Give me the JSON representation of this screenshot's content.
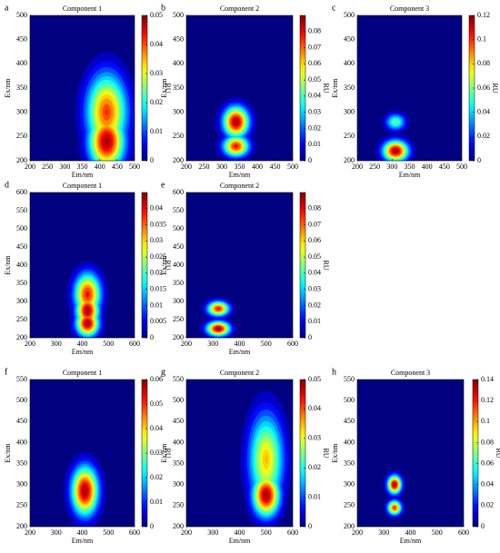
{
  "chart_data": [
    {
      "type": "contour",
      "panel": "a",
      "title": "Component 1",
      "xlabel": "Em/nm",
      "ylabel": "Ex/nm",
      "colorbar_label": "RU",
      "xlim": [
        200,
        500
      ],
      "xticks": [
        200,
        250,
        300,
        350,
        400,
        450,
        500
      ],
      "ylim": [
        200,
        500
      ],
      "yticks": [
        200,
        250,
        300,
        350,
        400,
        450,
        500
      ],
      "clim": [
        0,
        0.05
      ],
      "cticks": [
        0,
        0.01,
        0.02,
        0.03,
        0.04,
        0.05
      ],
      "colormap": "jet",
      "peaks": [
        {
          "em": 420,
          "ex": 300,
          "value": 0.042,
          "em_spread": 40,
          "ex_spread": 55
        },
        {
          "em": 420,
          "ex": 240,
          "value": 0.05,
          "em_spread": 35,
          "ex_spread": 40
        }
      ]
    },
    {
      "type": "contour",
      "panel": "b",
      "title": "Component 2",
      "xlabel": "Em/nm",
      "ylabel": "Ex/nm",
      "colorbar_label": "RU",
      "xlim": [
        200,
        500
      ],
      "xticks": [
        200,
        250,
        300,
        350,
        400,
        450,
        500
      ],
      "ylim": [
        200,
        500
      ],
      "yticks": [
        200,
        250,
        300,
        350,
        400,
        450,
        500
      ],
      "clim": [
        0,
        0.09
      ],
      "cticks": [
        0,
        0.01,
        0.02,
        0.03,
        0.04,
        0.05,
        0.06,
        0.07,
        0.08
      ],
      "colormap": "jet",
      "peaks": [
        {
          "em": 340,
          "ex": 280,
          "value": 0.09,
          "em_spread": 25,
          "ex_spread": 22
        },
        {
          "em": 340,
          "ex": 230,
          "value": 0.08,
          "em_spread": 25,
          "ex_spread": 15
        }
      ]
    },
    {
      "type": "contour",
      "panel": "c",
      "title": "Component 3",
      "xlabel": "Em/nm",
      "ylabel": "Ex/nm",
      "colorbar_label": "RU",
      "xlim": [
        200,
        500
      ],
      "xticks": [
        200,
        250,
        300,
        350,
        400,
        450,
        500
      ],
      "ylim": [
        200,
        500
      ],
      "yticks": [
        200,
        250,
        300,
        350,
        400,
        450,
        500
      ],
      "clim": [
        0,
        0.12
      ],
      "cticks": [
        0,
        0.02,
        0.04,
        0.06,
        0.08,
        0.1,
        0.12
      ],
      "colormap": "jet",
      "peaks": [
        {
          "em": 310,
          "ex": 280,
          "value": 0.06,
          "em_spread": 20,
          "ex_spread": 12
        },
        {
          "em": 310,
          "ex": 220,
          "value": 0.12,
          "em_spread": 25,
          "ex_spread": 15
        }
      ]
    },
    {
      "type": "contour",
      "panel": "d",
      "title": "Component 1",
      "xlabel": "Em/nm",
      "ylabel": "Ex/nm",
      "colorbar_label": "RU",
      "xlim": [
        200,
        600
      ],
      "xticks": [
        200,
        300,
        400,
        500,
        600
      ],
      "ylim": [
        200,
        600
      ],
      "yticks": [
        200,
        250,
        300,
        350,
        400,
        450,
        500,
        550,
        600
      ],
      "clim": [
        0,
        0.045
      ],
      "cticks": [
        0,
        0.005,
        0.01,
        0.015,
        0.02,
        0.025,
        0.03,
        0.035,
        0.04
      ],
      "colormap": "jet",
      "peaks": [
        {
          "em": 420,
          "ex": 320,
          "value": 0.04,
          "em_spread": 35,
          "ex_spread": 40
        },
        {
          "em": 420,
          "ex": 275,
          "value": 0.045,
          "em_spread": 30,
          "ex_spread": 30
        },
        {
          "em": 420,
          "ex": 240,
          "value": 0.045,
          "em_spread": 30,
          "ex_spread": 25
        }
      ]
    },
    {
      "type": "contour",
      "panel": "e",
      "title": "Component 2",
      "xlabel": "Em/nm",
      "ylabel": "Ex/nm",
      "colorbar_label": "RU",
      "xlim": [
        200,
        600
      ],
      "xticks": [
        200,
        300,
        400,
        500,
        600
      ],
      "ylim": [
        200,
        600
      ],
      "yticks": [
        200,
        250,
        300,
        350,
        400,
        450,
        500,
        550,
        600
      ],
      "clim": [
        0,
        0.09
      ],
      "cticks": [
        0,
        0.01,
        0.02,
        0.03,
        0.04,
        0.05,
        0.06,
        0.07,
        0.08
      ],
      "colormap": "jet",
      "peaks": [
        {
          "em": 320,
          "ex": 280,
          "value": 0.08,
          "em_spread": 28,
          "ex_spread": 14
        },
        {
          "em": 320,
          "ex": 225,
          "value": 0.09,
          "em_spread": 30,
          "ex_spread": 14
        }
      ]
    },
    {
      "type": "contour",
      "panel": "f",
      "title": "Component 1",
      "xlabel": "Em/nm",
      "ylabel": "Ex/nm",
      "colorbar_label": "RU",
      "xlim": [
        200,
        600
      ],
      "xticks": [
        200,
        300,
        400,
        500,
        600
      ],
      "ylim": [
        200,
        550
      ],
      "yticks": [
        200,
        250,
        300,
        350,
        400,
        450,
        500,
        550
      ],
      "clim": [
        0,
        0.06
      ],
      "cticks": [
        0,
        0.01,
        0.02,
        0.03,
        0.04,
        0.05,
        0.06
      ],
      "colormap": "jet",
      "peaks": [
        {
          "em": 410,
          "ex": 285,
          "value": 0.06,
          "em_spread": 35,
          "ex_spread": 40
        }
      ]
    },
    {
      "type": "contour",
      "panel": "g",
      "title": "Component 2",
      "xlabel": "Em/nm",
      "ylabel": "Ex/nm",
      "colorbar_label": "RU",
      "xlim": [
        200,
        600
      ],
      "xticks": [
        200,
        300,
        400,
        500,
        600
      ],
      "ylim": [
        200,
        550
      ],
      "yticks": [
        200,
        250,
        300,
        350,
        400,
        450,
        500,
        550
      ],
      "clim": [
        0,
        0.05
      ],
      "cticks": [
        0,
        0.01,
        0.02,
        0.03,
        0.04,
        0.05
      ],
      "colormap": "jet",
      "peaks": [
        {
          "em": 500,
          "ex": 360,
          "value": 0.035,
          "em_spread": 45,
          "ex_spread": 75
        },
        {
          "em": 500,
          "ex": 275,
          "value": 0.05,
          "em_spread": 35,
          "ex_spread": 35
        }
      ]
    },
    {
      "type": "contour",
      "panel": "h",
      "title": "Component 3",
      "xlabel": "Em/nm",
      "ylabel": "Ex/nm",
      "colorbar_label": "RU",
      "xlim": [
        200,
        600
      ],
      "xticks": [
        200,
        300,
        400,
        500,
        600
      ],
      "ylim": [
        200,
        550
      ],
      "yticks": [
        200,
        250,
        300,
        350,
        400,
        450,
        500,
        550
      ],
      "clim": [
        0,
        0.14
      ],
      "cticks": [
        0,
        0.02,
        0.04,
        0.06,
        0.08,
        0.1,
        0.12,
        0.14
      ],
      "colormap": "jet",
      "peaks": [
        {
          "em": 340,
          "ex": 300,
          "value": 0.14,
          "em_spread": 18,
          "ex_spread": 15
        },
        {
          "em": 340,
          "ex": 245,
          "value": 0.12,
          "em_spread": 18,
          "ex_spread": 12
        }
      ]
    }
  ]
}
